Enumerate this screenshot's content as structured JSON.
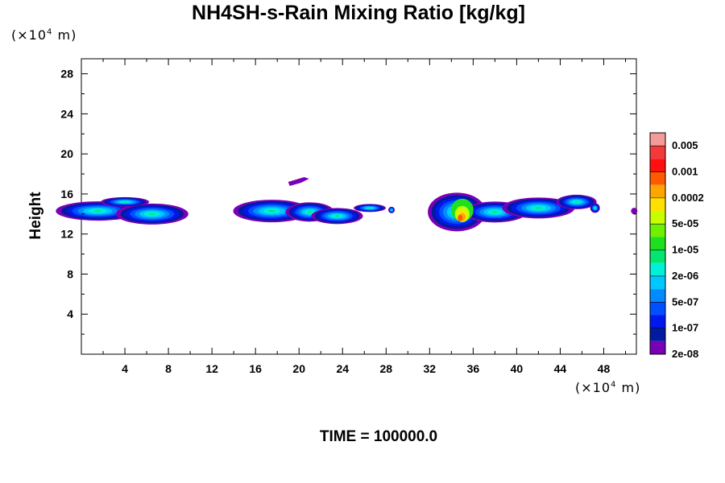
{
  "chart_data": {
    "type": "heatmap",
    "title": "NH4SH-s-Rain Mixing Ratio [kg/kg]",
    "xlabel": "",
    "ylabel": "Height",
    "x_unit_multiplier": "(×10",
    "x_unit_exp": "4",
    "x_unit_tail": " m)",
    "y_unit_multiplier": "(×10",
    "y_unit_exp": "4",
    "y_unit_tail": " m)",
    "xlim": [
      0,
      51
    ],
    "ylim": [
      0,
      29.5
    ],
    "x_ticks": [
      4,
      8,
      12,
      16,
      20,
      24,
      28,
      32,
      36,
      40,
      44,
      48
    ],
    "y_ticks": [
      4,
      8,
      12,
      16,
      20,
      24,
      28
    ],
    "colorbar_labels": [
      "0.005",
      "0.001",
      "0.0002",
      "5e-05",
      "1e-05",
      "2e-06",
      "5e-07",
      "1e-07",
      "2e-08"
    ],
    "colorbar_colors": [
      "#f49a9a",
      "#f23a3a",
      "#ff1010",
      "#ff5a00",
      "#ffa500",
      "#ffe000",
      "#c8ff00",
      "#6ef000",
      "#1ee01e",
      "#00e66e",
      "#00f0d8",
      "#00c8ff",
      "#008cff",
      "#0050ff",
      "#0018f0",
      "#001aa0",
      "#7a00b8"
    ],
    "footer": "TIME = 100000.0",
    "cloud_regions": [
      {
        "x": [
          0,
          10
        ],
        "y": [
          13.0,
          15.5
        ],
        "peak_level": 8
      },
      {
        "x": [
          15.5,
          29
        ],
        "y": [
          13.0,
          17.8
        ],
        "peak_level": 8
      },
      {
        "x": [
          32,
          47.5
        ],
        "y": [
          12.8,
          16.5
        ],
        "peak_level": 3
      },
      {
        "x": [
          50.5,
          51
        ],
        "y": [
          14,
          14.5
        ],
        "peak_level": 16
      }
    ]
  }
}
